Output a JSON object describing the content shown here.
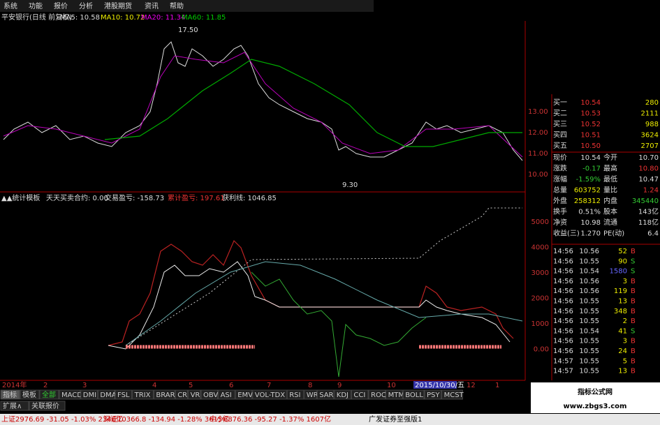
{
  "menu": [
    "系统",
    "功能",
    "报价",
    "分析",
    "港股期货",
    "资讯",
    "帮助"
  ],
  "chart_header": {
    "title": "平安银行(日线 前复权)",
    "ma": [
      "MA5: 10.58",
      "MA10: 10.72",
      "MA20: 11.34",
      "MA60: 11.85"
    ]
  },
  "price_axis": [
    "13.00",
    "12.00",
    "11.00",
    "10.00"
  ],
  "price_annotations": {
    "high": "17.50",
    "low": "9.30"
  },
  "indicator_header": [
    "▲▲统计模板",
    "天天买卖合约: 0.00",
    "交易盈亏: -158.73",
    "累计盈亏: 197.61",
    "获利线: 1046.85"
  ],
  "indicator_axis": [
    "5000",
    "4000",
    "3000",
    "2000",
    "1000",
    "0.00"
  ],
  "date_axis": [
    "2014年",
    "2",
    "3",
    "4",
    "5",
    "6",
    "7",
    "8",
    "9",
    "10",
    "2015/10/30/五",
    "12",
    "1"
  ],
  "quote_book": [
    {
      "label": "买一",
      "price": "10.54",
      "volume": "280"
    },
    {
      "label": "买二",
      "price": "10.53",
      "volume": "2111"
    },
    {
      "label": "买三",
      "price": "10.52",
      "volume": "988"
    },
    {
      "label": "买四",
      "price": "10.51",
      "volume": "3624"
    },
    {
      "label": "买五",
      "price": "10.50",
      "volume": "2707"
    }
  ],
  "stats": [
    {
      "label": "现价",
      "value": "10.54",
      "label2": "今开",
      "value2": "10.70"
    },
    {
      "label": "涨跌",
      "value": "-0.17",
      "label2": "最高",
      "value2": "10.80"
    },
    {
      "label": "涨幅",
      "value": "-1.59%",
      "label2": "最低",
      "value2": "10.47"
    },
    {
      "label": "总量",
      "value": "603752",
      "label2": "量比",
      "value2": "1.24"
    },
    {
      "label": "外盘",
      "value": "258312",
      "label2": "内盘",
      "value2": "345440"
    },
    {
      "label": "换手",
      "value": "0.51%",
      "label2": "股本",
      "value2": "143亿"
    },
    {
      "label": "净资",
      "value": "10.98",
      "label2": "流通",
      "value2": "118亿"
    },
    {
      "label": "收益(三)",
      "value": "1.270",
      "label2": "PE(动)",
      "value2": "6.4"
    }
  ],
  "ticks": [
    [
      "14:56",
      "10.56",
      "52",
      "B"
    ],
    [
      "14:56",
      "10.55",
      "90",
      "S"
    ],
    [
      "14:56",
      "10.54",
      "1580",
      "S"
    ],
    [
      "14:56",
      "10.56",
      "3",
      "B"
    ],
    [
      "14:56",
      "10.56",
      "119",
      "B"
    ],
    [
      "14:56",
      "10.55",
      "13",
      "B"
    ],
    [
      "14:56",
      "10.55",
      "348",
      "B"
    ],
    [
      "14:56",
      "10.55",
      "2",
      "B"
    ],
    [
      "14:56",
      "10.54",
      "41",
      "S"
    ],
    [
      "14:56",
      "10.55",
      "3",
      "B"
    ],
    [
      "14:56",
      "10.55",
      "24",
      "B"
    ],
    [
      "14:57",
      "10.55",
      "5",
      "B"
    ],
    [
      "14:57",
      "10.55",
      "13",
      "B"
    ]
  ],
  "tabs": [
    "指标",
    "模板",
    "全部",
    "MACD",
    "DMI",
    "DMA",
    "FSL",
    "TRIX",
    "BRAR",
    "CR",
    "VR",
    "OBV",
    "ASI",
    "EMV",
    "VOL-TDX",
    "RSI",
    "WR",
    "SAR",
    "KDJ",
    "CCI",
    "ROC",
    "MTM",
    "BOLL",
    "PSY",
    "MCST"
  ],
  "subtabs": [
    "扩展∧",
    "关联报价"
  ],
  "status": [
    "上证2976.69 -31.05 -1.03% 2346亿",
    "深证10366.8 -134.94 -1.28% 3615亿",
    "中小6876.36 -95.27 -1.37% 1607亿",
    "广发证券至强版1"
  ],
  "watermark": {
    "title": "指标公式网",
    "url": "www.zbgs3.com"
  }
}
